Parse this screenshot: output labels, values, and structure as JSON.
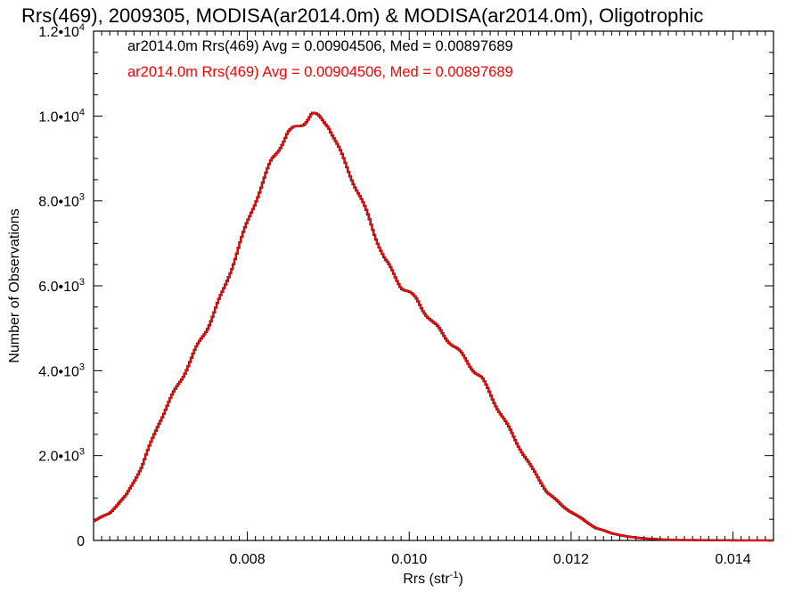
{
  "chart_data": {
    "type": "line",
    "title": "Rrs(469), 2009305, MODISA(ar2014.0m) & MODISA(ar2014.0m), Oligotrophic",
    "xlabel": "Rrs (str",
    "xlabel_sup": "-1",
    "xlabel_end": ")",
    "ylabel": "Number of Observations",
    "xlim": [
      0.0061,
      0.0145
    ],
    "ylim": [
      0,
      12000
    ],
    "x_ticks": [
      {
        "value": 0.008,
        "label": "0.008"
      },
      {
        "value": 0.01,
        "label": "0.010"
      },
      {
        "value": 0.012,
        "label": "0.012"
      },
      {
        "value": 0.014,
        "label": "0.014"
      }
    ],
    "y_ticks": [
      {
        "value": 0,
        "mantissa": "0",
        "exp": ""
      },
      {
        "value": 2000,
        "mantissa": "2.0•10",
        "exp": "3"
      },
      {
        "value": 4000,
        "mantissa": "4.0•10",
        "exp": "3"
      },
      {
        "value": 6000,
        "mantissa": "6.0•10",
        "exp": "3"
      },
      {
        "value": 8000,
        "mantissa": "8.0•10",
        "exp": "3"
      },
      {
        "value": 10000,
        "mantissa": "1.0•10",
        "exp": "4"
      },
      {
        "value": 12000,
        "mantissa": "1.2•10",
        "exp": "4"
      }
    ],
    "legend_placement": "top-left",
    "series": [
      {
        "label": "ar2014.0m Rrs(469) Avg = 0.00904506, Med = 0.00897689",
        "color": "#000000",
        "step": true,
        "points": [
          [
            0.0061,
            450
          ],
          [
            0.0063,
            650
          ],
          [
            0.0065,
            1050
          ],
          [
            0.0067,
            1750
          ],
          [
            0.0069,
            2750
          ],
          [
            0.0071,
            3500
          ],
          [
            0.0073,
            4250
          ],
          [
            0.0075,
            5000
          ],
          [
            0.0077,
            5850
          ],
          [
            0.0079,
            6950
          ],
          [
            0.0081,
            8000
          ],
          [
            0.0083,
            8950
          ],
          [
            0.0085,
            9600
          ],
          [
            0.0087,
            9850
          ],
          [
            0.0088,
            10050
          ],
          [
            0.0089,
            9950
          ],
          [
            0.009,
            9800
          ],
          [
            0.0091,
            9350
          ],
          [
            0.0093,
            8500
          ],
          [
            0.0095,
            7600
          ],
          [
            0.0097,
            6600
          ],
          [
            0.0099,
            6000
          ],
          [
            0.0101,
            5650
          ],
          [
            0.0103,
            5100
          ],
          [
            0.0105,
            4700
          ],
          [
            0.0107,
            4250
          ],
          [
            0.0109,
            3800
          ],
          [
            0.0111,
            3100
          ],
          [
            0.0113,
            2400
          ],
          [
            0.0115,
            1750
          ],
          [
            0.0117,
            1150
          ],
          [
            0.0119,
            800
          ],
          [
            0.0121,
            550
          ],
          [
            0.0123,
            300
          ],
          [
            0.0125,
            170
          ],
          [
            0.0127,
            90
          ],
          [
            0.0129,
            50
          ],
          [
            0.0131,
            25
          ],
          [
            0.0133,
            12
          ],
          [
            0.0137,
            5
          ],
          [
            0.0141,
            2
          ],
          [
            0.0145,
            0
          ]
        ]
      },
      {
        "label": "ar2014.0m Rrs(469) Avg = 0.00904506, Med = 0.00897689",
        "color": "#ff0000",
        "step": true,
        "points": [
          [
            0.0061,
            450
          ],
          [
            0.0063,
            650
          ],
          [
            0.0065,
            1050
          ],
          [
            0.0067,
            1750
          ],
          [
            0.0069,
            2750
          ],
          [
            0.0071,
            3500
          ],
          [
            0.0073,
            4250
          ],
          [
            0.0075,
            5000
          ],
          [
            0.0077,
            5850
          ],
          [
            0.0079,
            6950
          ],
          [
            0.0081,
            8000
          ],
          [
            0.0083,
            8950
          ],
          [
            0.0085,
            9600
          ],
          [
            0.0087,
            9850
          ],
          [
            0.0088,
            10050
          ],
          [
            0.0089,
            9950
          ],
          [
            0.009,
            9800
          ],
          [
            0.0091,
            9350
          ],
          [
            0.0093,
            8500
          ],
          [
            0.0095,
            7600
          ],
          [
            0.0097,
            6600
          ],
          [
            0.0099,
            6000
          ],
          [
            0.0101,
            5650
          ],
          [
            0.0103,
            5100
          ],
          [
            0.0105,
            4700
          ],
          [
            0.0107,
            4250
          ],
          [
            0.0109,
            3800
          ],
          [
            0.0111,
            3100
          ],
          [
            0.0113,
            2400
          ],
          [
            0.0115,
            1750
          ],
          [
            0.0117,
            1150
          ],
          [
            0.0119,
            800
          ],
          [
            0.0121,
            550
          ],
          [
            0.0123,
            300
          ],
          [
            0.0125,
            170
          ],
          [
            0.0127,
            90
          ],
          [
            0.0129,
            50
          ],
          [
            0.0131,
            25
          ],
          [
            0.0133,
            12
          ],
          [
            0.0137,
            5
          ],
          [
            0.0141,
            2
          ],
          [
            0.0145,
            0
          ]
        ]
      }
    ]
  }
}
